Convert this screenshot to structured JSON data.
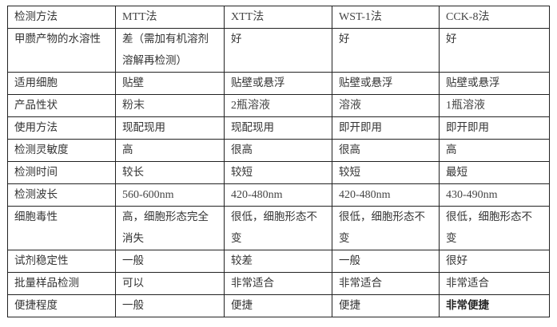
{
  "header": [
    "检测方法",
    "MTT法",
    "XTT法",
    "WST-1法",
    "CCK-8法"
  ],
  "rows": [
    [
      "甲臜产物的水溶性",
      "差（需加有机溶剂溶解再检测）",
      "好",
      "好",
      "好"
    ],
    [
      "适用细胞",
      "贴壁",
      "贴壁或悬浮",
      "贴壁或悬浮",
      "贴壁或悬浮"
    ],
    [
      "产品性状",
      "粉末",
      "2瓶溶液",
      "溶液",
      "1瓶溶液"
    ],
    [
      "使用方法",
      "现配现用",
      "现配现用",
      "即开即用",
      "即开即用"
    ],
    [
      "检测灵敏度",
      "高",
      "很高",
      "很高",
      "高"
    ],
    [
      "检测时间",
      "较长",
      "较短",
      "较短",
      "最短"
    ],
    [
      "检测波长",
      "560-600nm",
      "420-480nm",
      "420-480nm",
      "430-490nm"
    ],
    [
      "细胞毒性",
      "高，细胞形态完全消失",
      "很低，细胞形态不变",
      "很低，细胞形态不变",
      "很低，细胞形态不变"
    ],
    [
      "试剂稳定性",
      "一般",
      "较差",
      "一般",
      "很好"
    ],
    [
      "批量样品检测",
      "可以",
      "非常适合",
      "非常适合",
      "非常适合"
    ],
    [
      "便捷程度",
      "一般",
      "便捷",
      "便捷",
      "非常便捷"
    ]
  ]
}
